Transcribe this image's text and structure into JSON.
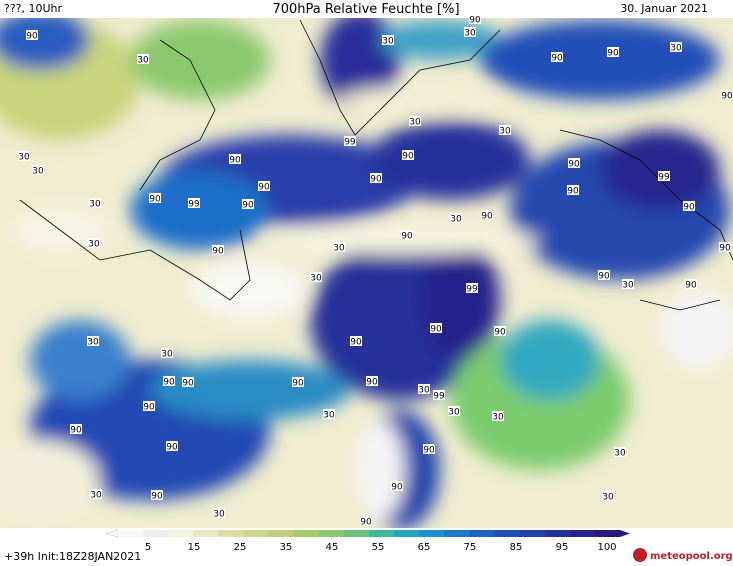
{
  "header": {
    "left": "???, 10Uhr",
    "title": "700hPa Relative Feuchte [%]",
    "date": "30. Januar 2021"
  },
  "footer": {
    "run": "+39h Init:18Z28JAN2021",
    "logo": "meteopool.org"
  },
  "colorbar": {
    "ticks": [
      5,
      15,
      25,
      35,
      45,
      55,
      65,
      75,
      85,
      95,
      100
    ],
    "colors": [
      "#f8f8f8",
      "#eeeeee",
      "#f5f2dc",
      "#ece6c0",
      "#e0dba0",
      "#d2d48a",
      "#c0d07a",
      "#a8cc6c",
      "#8cc870",
      "#68c07c",
      "#40b89c",
      "#20a8c0",
      "#1a90d0",
      "#1c78cc",
      "#2062c4",
      "#2250b8",
      "#2440a8",
      "#26309a",
      "#28228c",
      "#2a1a78"
    ]
  },
  "contour_labels": [
    90,
    30,
    30,
    30,
    90,
    99,
    90,
    90,
    90,
    30,
    30,
    90,
    30,
    30,
    30,
    30,
    90,
    30,
    99,
    90,
    90,
    30,
    90,
    30,
    90,
    99,
    90,
    90,
    90,
    90,
    90,
    30,
    99,
    30,
    30,
    30,
    90,
    90,
    90,
    90,
    90,
    90,
    30,
    30,
    90,
    90,
    90,
    30,
    30,
    90,
    90,
    30,
    90,
    90,
    90,
    99,
    90,
    90,
    90,
    30,
    90,
    30,
    30
  ]
}
